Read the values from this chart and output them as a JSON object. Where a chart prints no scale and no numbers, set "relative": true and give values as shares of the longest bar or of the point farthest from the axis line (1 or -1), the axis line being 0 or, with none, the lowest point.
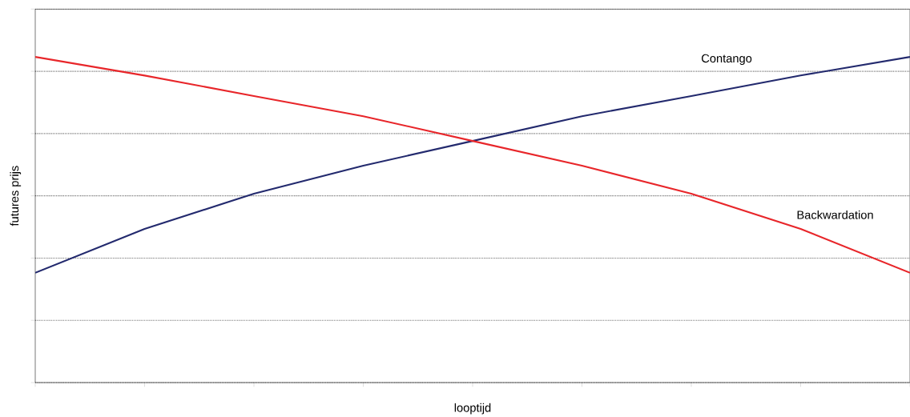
{
  "chart_data": {
    "type": "line",
    "relative": true,
    "xlabel": "looptijd",
    "ylabel": "futures prijs",
    "categories": [
      null,
      null,
      null,
      null,
      null,
      null,
      null,
      null,
      null
    ],
    "series": [
      {
        "name": "Contango",
        "color": "#232a6e",
        "values": [
          0.337,
          0.472,
          0.58,
          0.666,
          0.742,
          0.818,
          0.88,
          0.943,
          1
        ]
      },
      {
        "name": "Backwardation",
        "color": "#e8262a",
        "values": [
          1,
          0.943,
          0.88,
          0.818,
          0.742,
          0.666,
          0.58,
          0.472,
          0.337
        ]
      }
    ],
    "grid": "y",
    "marker": "none",
    "line_style": "solid"
  }
}
